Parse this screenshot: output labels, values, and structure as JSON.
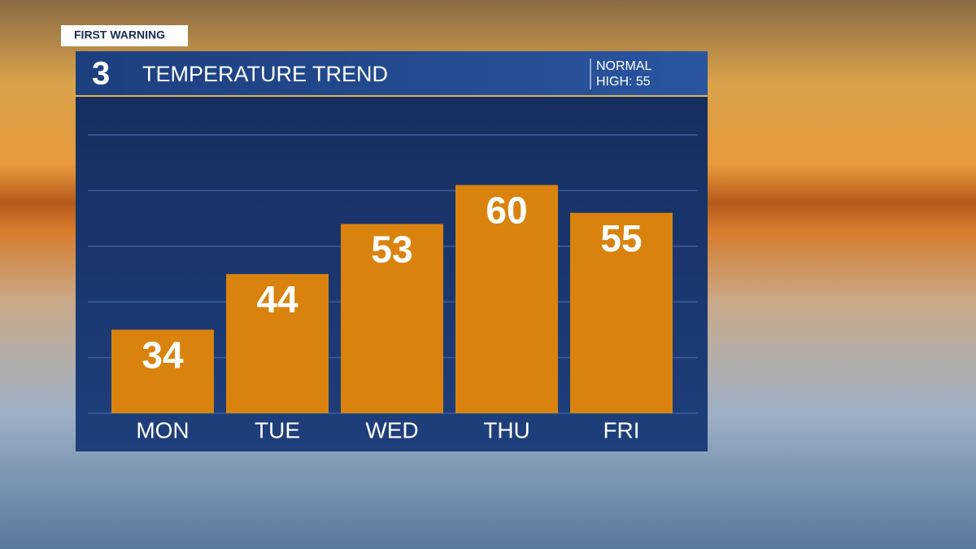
{
  "chart_data": {
    "type": "bar",
    "badge": "FIRST WARNING",
    "logo": "3",
    "title": "TEMPERATURE TREND",
    "normal_label": "NORMAL",
    "normal_high": "HIGH: 55",
    "categories": [
      "MON",
      "TUE",
      "WED",
      "THU",
      "FRI"
    ],
    "values": [
      34,
      44,
      53,
      60,
      55
    ],
    "color": "#d9830e",
    "ylim": [
      19,
      76
    ],
    "yticks": [
      19,
      29,
      39,
      49,
      59,
      69
    ],
    "grid": true
  }
}
